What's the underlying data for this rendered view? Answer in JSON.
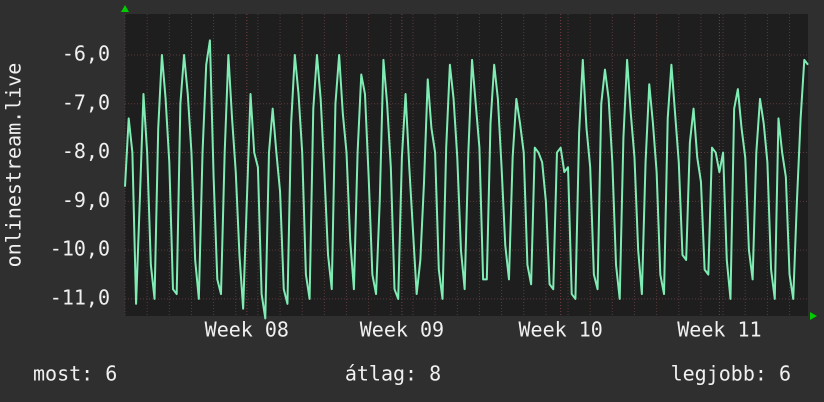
{
  "chart_data": {
    "type": "line",
    "ylabel": "onlinestream.live",
    "categories": [
      null,
      null,
      null,
      null,
      null,
      null,
      null,
      null,
      null,
      null,
      null,
      null,
      null,
      null,
      null,
      null,
      null,
      null,
      null,
      null,
      null,
      null,
      null,
      null,
      null,
      null,
      null,
      null,
      null,
      null,
      null,
      null,
      null,
      "Week 08",
      null,
      null,
      null,
      null,
      null,
      null,
      null,
      null,
      null,
      null,
      null,
      null,
      null,
      null,
      null,
      null,
      null,
      null,
      null,
      null,
      null,
      null,
      null,
      null,
      null,
      null,
      null,
      null,
      null,
      null,
      null,
      null,
      null,
      null,
      null,
      null,
      null,
      null,
      null,
      null,
      null,
      "Week 09",
      null,
      null,
      null,
      null,
      null,
      null,
      null,
      null,
      null,
      null,
      null,
      null,
      null,
      null,
      null,
      null,
      null,
      null,
      null,
      null,
      null,
      null,
      null,
      null,
      null,
      null,
      null,
      null,
      null,
      null,
      null,
      null,
      null,
      null,
      null,
      null,
      null,
      null,
      null,
      null,
      null,
      null,
      "Week 10",
      null,
      null,
      null,
      null,
      null,
      null,
      null,
      null,
      null,
      null,
      null,
      null,
      null,
      null,
      null,
      null,
      null,
      null,
      null,
      null,
      null,
      null,
      null,
      null,
      null,
      null,
      null,
      null,
      null,
      null,
      null,
      null,
      null,
      null,
      null,
      null,
      null,
      null,
      null,
      null,
      null,
      null,
      "Week 11",
      null,
      null,
      null,
      null,
      null,
      null,
      null,
      null,
      null,
      null,
      null,
      null,
      null,
      null,
      null,
      null,
      null,
      null,
      null,
      null,
      null,
      null,
      null,
      null
    ],
    "values": [
      -8.7,
      -7.3,
      -8.0,
      -11.1,
      -9.0,
      -6.8,
      -8.0,
      -10.3,
      -11.0,
      -7.5,
      -6.0,
      -6.9,
      -8.2,
      -10.8,
      -10.9,
      -7.0,
      -6.0,
      -6.8,
      -8.0,
      -10.2,
      -11.0,
      -8.0,
      -6.2,
      -5.7,
      -8.5,
      -10.6,
      -10.9,
      -8.0,
      -6.0,
      -7.3,
      -8.4,
      -10.1,
      -11.2,
      -9.0,
      -6.8,
      -8.0,
      -8.3,
      -10.9,
      -11.4,
      -8.0,
      -7.1,
      -8.0,
      -8.8,
      -10.8,
      -11.1,
      -7.4,
      -6.0,
      -6.8,
      -8.0,
      -10.5,
      -11.0,
      -7.1,
      -6.0,
      -6.9,
      -8.4,
      -10.1,
      -10.8,
      -7.0,
      -6.0,
      -7.2,
      -8.0,
      -9.8,
      -10.8,
      -8.0,
      -6.4,
      -6.8,
      -8.5,
      -10.5,
      -10.9,
      -9.0,
      -6.1,
      -7.0,
      -8.3,
      -10.8,
      -11.0,
      -8.1,
      -6.8,
      -8.3,
      -9.6,
      -10.9,
      -10.2,
      -8.6,
      -6.5,
      -7.5,
      -8.0,
      -10.4,
      -11.0,
      -7.9,
      -6.2,
      -6.9,
      -8.1,
      -10.0,
      -10.8,
      -8.0,
      -6.1,
      -7.0,
      -7.9,
      -10.6,
      -10.6,
      -7.4,
      -6.2,
      -6.9,
      -8.3,
      -9.9,
      -10.6,
      -8.1,
      -6.9,
      -7.4,
      -8.0,
      -10.3,
      -10.7,
      -7.9,
      -8.0,
      -8.2,
      -9.0,
      -10.7,
      -10.8,
      -8.0,
      -7.9,
      -8.4,
      -8.3,
      -10.9,
      -11.0,
      -7.6,
      -6.1,
      -7.5,
      -8.3,
      -10.5,
      -10.8,
      -7.0,
      -6.3,
      -6.9,
      -8.2,
      -10.3,
      -11.0,
      -7.7,
      -6.1,
      -7.2,
      -8.1,
      -10.0,
      -10.9,
      -8.2,
      -6.6,
      -7.4,
      -8.4,
      -10.5,
      -10.9,
      -7.3,
      -6.2,
      -7.2,
      -8.2,
      -10.1,
      -10.2,
      -7.8,
      -7.1,
      -8.1,
      -8.6,
      -10.4,
      -10.5,
      -7.9,
      -8.0,
      -8.4,
      -8.0,
      -10.2,
      -11.0,
      -7.1,
      -6.7,
      -7.5,
      -8.1,
      -10.0,
      -10.6,
      -8.0,
      -6.9,
      -7.4,
      -8.2,
      -10.4,
      -11.0,
      -7.3,
      -8.0,
      -8.5,
      -10.5,
      -11.0,
      -9.0,
      -7.3,
      -6.1,
      -6.2
    ],
    "color": "#7fecb4",
    "ylim": [
      -11.35,
      -5.16
    ],
    "yticks": [
      {
        "value": -6,
        "label": "-6,0"
      },
      {
        "value": -7,
        "label": "-7,0"
      },
      {
        "value": -8,
        "label": "-8,0"
      },
      {
        "value": -9,
        "label": "-9,0"
      },
      {
        "value": -10,
        "label": "-10,0"
      },
      {
        "value": -11,
        "label": "-11,0"
      }
    ],
    "grid": true,
    "stats": [
      "most: 6",
      "átlag: 8",
      "legjobb: 6"
    ]
  }
}
